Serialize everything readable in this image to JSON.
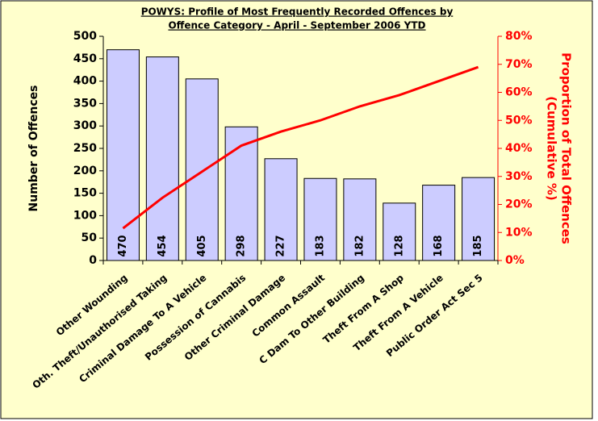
{
  "chart_data": {
    "type": "pareto",
    "title": [
      "POWYS: Profile of Most Frequently Recorded Offences by",
      "Offence Category - April - September 2006 YTD"
    ],
    "y_label": "Number of Offences",
    "y2_label": [
      "Proportion of Total Offences",
      "(Cumulative %)"
    ],
    "categories": [
      "Other Wounding",
      "Oth. Theft/Unauthorised Taking",
      "Criminal Damage To A Vehicle",
      "Possession of Cannabis",
      "Other Criminal Damage",
      "Common Assault",
      "C Dam To  Other Building",
      "Theft From A Shop",
      "Theft From A Vehicle",
      "Public Order Act Sec 5"
    ],
    "series": [
      {
        "name": "Number of Offences",
        "type": "bar",
        "color": "#ccccff",
        "values": [
          470,
          454,
          405,
          298,
          227,
          183,
          182,
          128,
          168,
          185
        ]
      },
      {
        "name": "Cumulative %",
        "type": "line",
        "axis": "y2",
        "color": "#ff0000",
        "values": [
          11.5,
          22.4,
          31.7,
          41,
          46,
          50,
          55,
          59,
          64,
          69
        ]
      }
    ],
    "ylim": [
      0,
      500
    ],
    "yticks": [
      0,
      50,
      100,
      150,
      200,
      250,
      300,
      350,
      400,
      450,
      500
    ],
    "y2lim": [
      0,
      80
    ],
    "y2ticks": [
      {
        "value": 0,
        "label": "0%"
      },
      {
        "value": 10,
        "label": "10%"
      },
      {
        "value": 20,
        "label": "20%"
      },
      {
        "value": 30,
        "label": "30%"
      },
      {
        "value": 40,
        "label": "40%"
      },
      {
        "value": 50,
        "label": "50%"
      },
      {
        "value": 60,
        "label": "60%"
      },
      {
        "value": 70,
        "label": "70%"
      },
      {
        "value": 80,
        "label": "80%"
      }
    ],
    "background": "#ffffcc"
  }
}
